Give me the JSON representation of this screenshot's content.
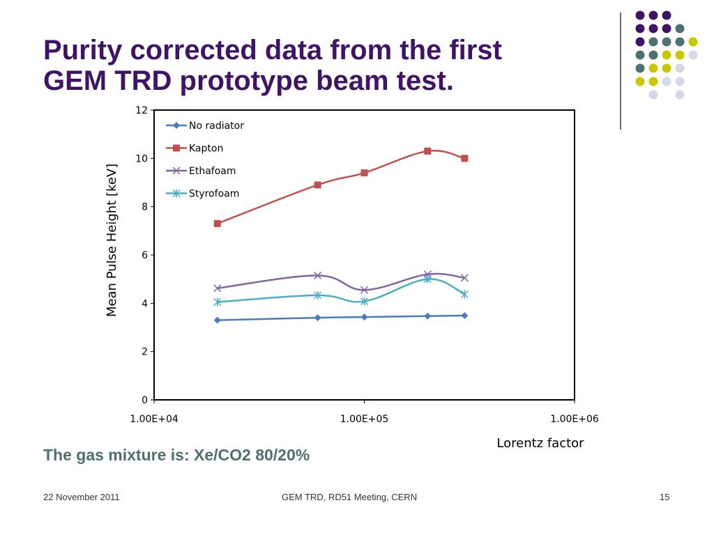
{
  "slide": {
    "title_line1": "Purity corrected data from the first",
    "title_line2": "GEM TRD prototype beam test.",
    "subtitle": "The gas mixture is: Xe/CO2 80/20%",
    "footer_date": "22 November 2011",
    "footer_center": "GEM TRD,  RD51 Meeting, CERN",
    "page_number": "15"
  },
  "decor": {
    "dot_colors": {
      "purple": "#3f1466",
      "teal": "#4f7070",
      "yellow": "#c9c800",
      "lavender": "#d7d7ea"
    },
    "dot_rows": [
      [
        "purple",
        "purple",
        "purple",
        "",
        ""
      ],
      [
        "purple",
        "purple",
        "purple",
        "teal",
        ""
      ],
      [
        "purple",
        "teal",
        "teal",
        "teal",
        "yellow"
      ],
      [
        "teal",
        "teal",
        "yellow",
        "yellow",
        "lavender"
      ],
      [
        "teal",
        "yellow",
        "yellow",
        "lavender",
        ""
      ],
      [
        "yellow",
        "yellow",
        "lavender",
        "lavender",
        ""
      ],
      [
        "",
        "lavender",
        "",
        "lavender",
        ""
      ]
    ]
  },
  "chart_data": {
    "type": "line",
    "title": "",
    "xlabel": "Lorentz factor",
    "ylabel": "Mean  Pulse Height  [keV]",
    "x_scale": "log",
    "xlim": [
      10000,
      1000000
    ],
    "ylim": [
      0,
      12
    ],
    "x_ticks": [
      10000,
      100000,
      1000000
    ],
    "x_tick_labels": [
      "1.00E+04",
      "1.00E+05",
      "1.00E+06"
    ],
    "y_ticks": [
      0,
      2,
      4,
      6,
      8,
      10,
      12
    ],
    "y_tick_labels": [
      "0",
      "2",
      "4",
      "6",
      "8",
      "10",
      "12"
    ],
    "grid": false,
    "legend_position": "top-left",
    "x": [
      20000,
      60000,
      100000,
      200000,
      300000
    ],
    "series": [
      {
        "name": "No radiator",
        "values": [
          3.3,
          3.4,
          3.43,
          3.47,
          3.49
        ],
        "color": "#4a7ac0",
        "marker": "diamond"
      },
      {
        "name": "Kapton",
        "values": [
          7.3,
          8.9,
          9.4,
          10.3,
          10.0
        ],
        "color": "#c0504d",
        "marker": "square"
      },
      {
        "name": "Ethafoam",
        "values": [
          4.62,
          5.15,
          4.55,
          5.2,
          5.05
        ],
        "color": "#8064a2",
        "marker": "x"
      },
      {
        "name": "Styrofoam",
        "values": [
          4.05,
          4.33,
          4.08,
          5.0,
          4.37
        ],
        "color": "#4bacc6",
        "marker": "star"
      }
    ]
  }
}
